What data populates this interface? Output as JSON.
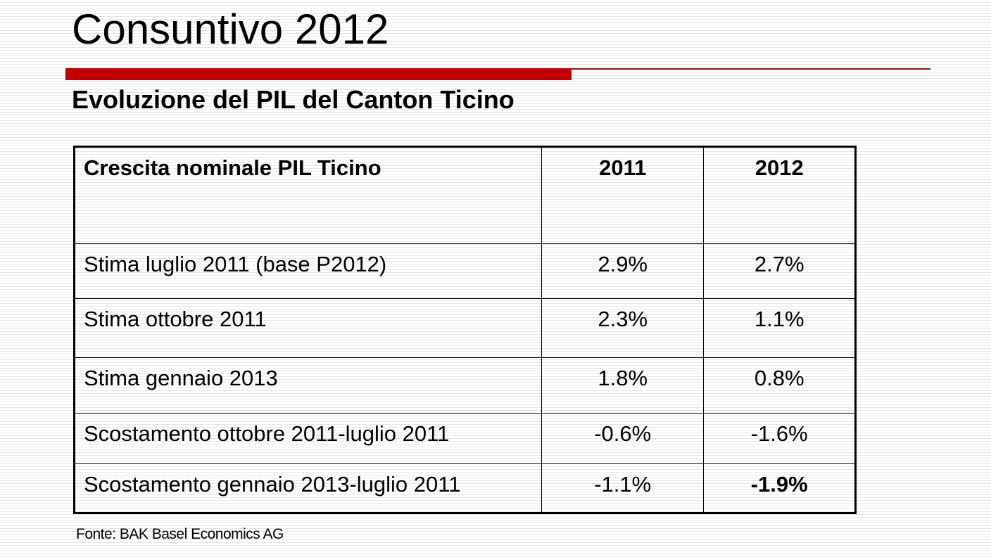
{
  "header": {
    "title": "Consuntivo 2012",
    "subtitle": "Evoluzione del PIL del Canton Ticino"
  },
  "table": {
    "columns": [
      "Crescita nominale PIL Ticino",
      "2011",
      "2012"
    ],
    "rows": [
      [
        "Stima luglio 2011 (base P2012)",
        "2.9%",
        "2.7%"
      ],
      [
        "Stima ottobre 2011",
        "2.3%",
        "1.1%"
      ],
      [
        "Stima gennaio 2013",
        "1.8%",
        "0.8%"
      ],
      [
        "Scostamento ottobre 2011-luglio 2011",
        "-0.6%",
        "-1.6%"
      ],
      [
        "Scostamento gennaio 2013-luglio 2011",
        "-1.1%",
        "-1.9%"
      ]
    ]
  },
  "source": "Fonte: BAK Basel Economics AG"
}
